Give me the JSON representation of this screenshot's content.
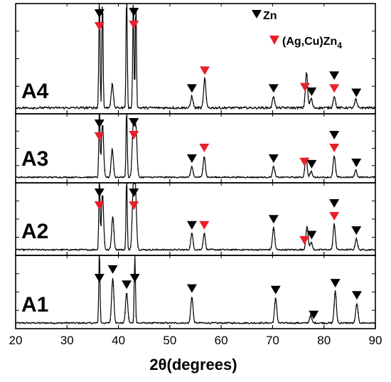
{
  "chart_data": {
    "type": "line",
    "xlabel": "2θ(degrees)",
    "xlim": [
      20,
      90
    ],
    "x_ticks": [
      "20",
      "30",
      "40",
      "50",
      "60",
      "70",
      "80",
      "90"
    ],
    "legend": {
      "placement": "top-right",
      "entries": [
        {
          "label": "Zn",
          "marker": "down-triangle",
          "color": "#000000"
        },
        {
          "label": "(Ag,Cu)Zn",
          "subscript": "4",
          "marker": "down-triangle",
          "color": "#e8202a"
        }
      ]
    },
    "series": [
      {
        "name": "A1",
        "peaks": [
          {
            "x": 36.3,
            "height": 1.0
          },
          {
            "x": 38.9,
            "height": 0.6
          },
          {
            "x": 41.6,
            "height": 0.4
          },
          {
            "x": 43.2,
            "height": 1.0
          },
          {
            "x": 54.3,
            "height": 0.35
          },
          {
            "x": 70.6,
            "height": 0.33
          },
          {
            "x": 77.4,
            "height": 0.1
          },
          {
            "x": 82.2,
            "height": 0.42
          },
          {
            "x": 86.4,
            "height": 0.26
          }
        ],
        "markers": [
          {
            "x": 36.3,
            "phases": [
              "Zn"
            ]
          },
          {
            "x": 38.9,
            "phases": [
              "Zn"
            ]
          },
          {
            "x": 41.6,
            "phases": [
              "Zn"
            ]
          },
          {
            "x": 43.2,
            "phases": [
              "Zn"
            ]
          },
          {
            "x": 54.3,
            "phases": [
              "Zn"
            ]
          },
          {
            "x": 70.6,
            "phases": [
              "Zn"
            ]
          },
          {
            "x": 78.0,
            "phases": [
              "Zn"
            ]
          },
          {
            "x": 82.2,
            "phases": [
              "Zn"
            ]
          },
          {
            "x": 86.4,
            "phases": [
              "Zn"
            ]
          }
        ]
      },
      {
        "name": "A2",
        "peaks": [
          {
            "x": 36.3,
            "height": 1.0
          },
          {
            "x": 36.9,
            "height": 0.75
          },
          {
            "x": 38.9,
            "height": 0.45
          },
          {
            "x": 41.6,
            "height": 1.0
          },
          {
            "x": 42.9,
            "height": 0.8
          },
          {
            "x": 43.3,
            "height": 0.8
          },
          {
            "x": 54.3,
            "height": 0.22
          },
          {
            "x": 56.7,
            "height": 0.22
          },
          {
            "x": 70.2,
            "height": 0.3
          },
          {
            "x": 76.7,
            "height": 0.32
          },
          {
            "x": 77.5,
            "height": 0.1
          },
          {
            "x": 82.0,
            "height": 0.34
          },
          {
            "x": 86.3,
            "height": 0.15
          }
        ],
        "markers": [
          {
            "x": 36.3,
            "phases": [
              "Zn",
              "(Ag,Cu)Zn4"
            ]
          },
          {
            "x": 43.0,
            "phases": [
              "Zn",
              "(Ag,Cu)Zn4"
            ]
          },
          {
            "x": 54.3,
            "phases": [
              "Zn"
            ]
          },
          {
            "x": 56.7,
            "phases": [
              "(Ag,Cu)Zn4"
            ]
          },
          {
            "x": 70.2,
            "phases": [
              "Zn"
            ]
          },
          {
            "x": 76.2,
            "phases": [
              "(Ag,Cu)Zn4"
            ]
          },
          {
            "x": 77.6,
            "phases": [
              "Zn"
            ]
          },
          {
            "x": 82.0,
            "phases": [
              "Zn",
              "(Ag,Cu)Zn4"
            ]
          },
          {
            "x": 86.3,
            "phases": [
              "Zn"
            ]
          }
        ]
      },
      {
        "name": "A3",
        "peaks": [
          {
            "x": 36.3,
            "height": 1.0
          },
          {
            "x": 36.9,
            "height": 0.75
          },
          {
            "x": 38.8,
            "height": 0.4
          },
          {
            "x": 41.6,
            "height": 1.0
          },
          {
            "x": 42.9,
            "height": 0.75
          },
          {
            "x": 43.4,
            "height": 0.7
          },
          {
            "x": 54.3,
            "height": 0.15
          },
          {
            "x": 56.7,
            "height": 0.3
          },
          {
            "x": 70.2,
            "height": 0.15
          },
          {
            "x": 76.5,
            "height": 0.28
          },
          {
            "x": 77.5,
            "height": 0.08
          },
          {
            "x": 82.0,
            "height": 0.3
          },
          {
            "x": 86.2,
            "height": 0.1
          }
        ],
        "markers": [
          {
            "x": 36.3,
            "phases": [
              "Zn",
              "(Ag,Cu)Zn4"
            ]
          },
          {
            "x": 43.0,
            "phases": [
              "Zn",
              "(Ag,Cu)Zn4"
            ]
          },
          {
            "x": 54.3,
            "phases": [
              "Zn"
            ]
          },
          {
            "x": 56.7,
            "phases": [
              "(Ag,Cu)Zn4"
            ]
          },
          {
            "x": 70.2,
            "phases": [
              "Zn"
            ]
          },
          {
            "x": 76.2,
            "phases": [
              "(Ag,Cu)Zn4"
            ]
          },
          {
            "x": 77.6,
            "phases": [
              "Zn"
            ]
          },
          {
            "x": 82.0,
            "phases": [
              "Zn",
              "(Ag,Cu)Zn4"
            ]
          },
          {
            "x": 86.3,
            "phases": [
              "Zn"
            ]
          }
        ]
      },
      {
        "name": "A4",
        "peaks": [
          {
            "x": 36.3,
            "height": 1.0
          },
          {
            "x": 36.9,
            "height": 0.95
          },
          {
            "x": 38.8,
            "height": 0.2
          },
          {
            "x": 41.6,
            "height": 1.0
          },
          {
            "x": 42.9,
            "height": 0.95
          },
          {
            "x": 43.4,
            "height": 0.9
          },
          {
            "x": 54.3,
            "height": 0.1
          },
          {
            "x": 56.8,
            "height": 0.25
          },
          {
            "x": 70.2,
            "height": 0.1
          },
          {
            "x": 76.6,
            "height": 0.3
          },
          {
            "x": 77.5,
            "height": 0.08
          },
          {
            "x": 82.0,
            "height": 0.1
          },
          {
            "x": 86.2,
            "height": 0.07
          }
        ],
        "markers": [
          {
            "x": 36.3,
            "phases": [
              "Zn",
              "(Ag,Cu)Zn4"
            ]
          },
          {
            "x": 43.0,
            "phases": [
              "Zn",
              "(Ag,Cu)Zn4"
            ]
          },
          {
            "x": 54.3,
            "phases": [
              "Zn"
            ]
          },
          {
            "x": 56.8,
            "phases": [
              "(Ag,Cu)Zn4"
            ]
          },
          {
            "x": 70.2,
            "phases": [
              "Zn"
            ]
          },
          {
            "x": 76.3,
            "phases": [
              "(Ag,Cu)Zn4"
            ]
          },
          {
            "x": 77.6,
            "phases": [
              "Zn"
            ]
          },
          {
            "x": 82.0,
            "phases": [
              "Zn",
              "(Ag,Cu)Zn4"
            ]
          },
          {
            "x": 86.3,
            "phases": [
              "Zn"
            ]
          }
        ]
      }
    ],
    "colors": {
      "zn": "#000000",
      "agcuzn4": "#e8202a",
      "trace": "#000000"
    }
  }
}
